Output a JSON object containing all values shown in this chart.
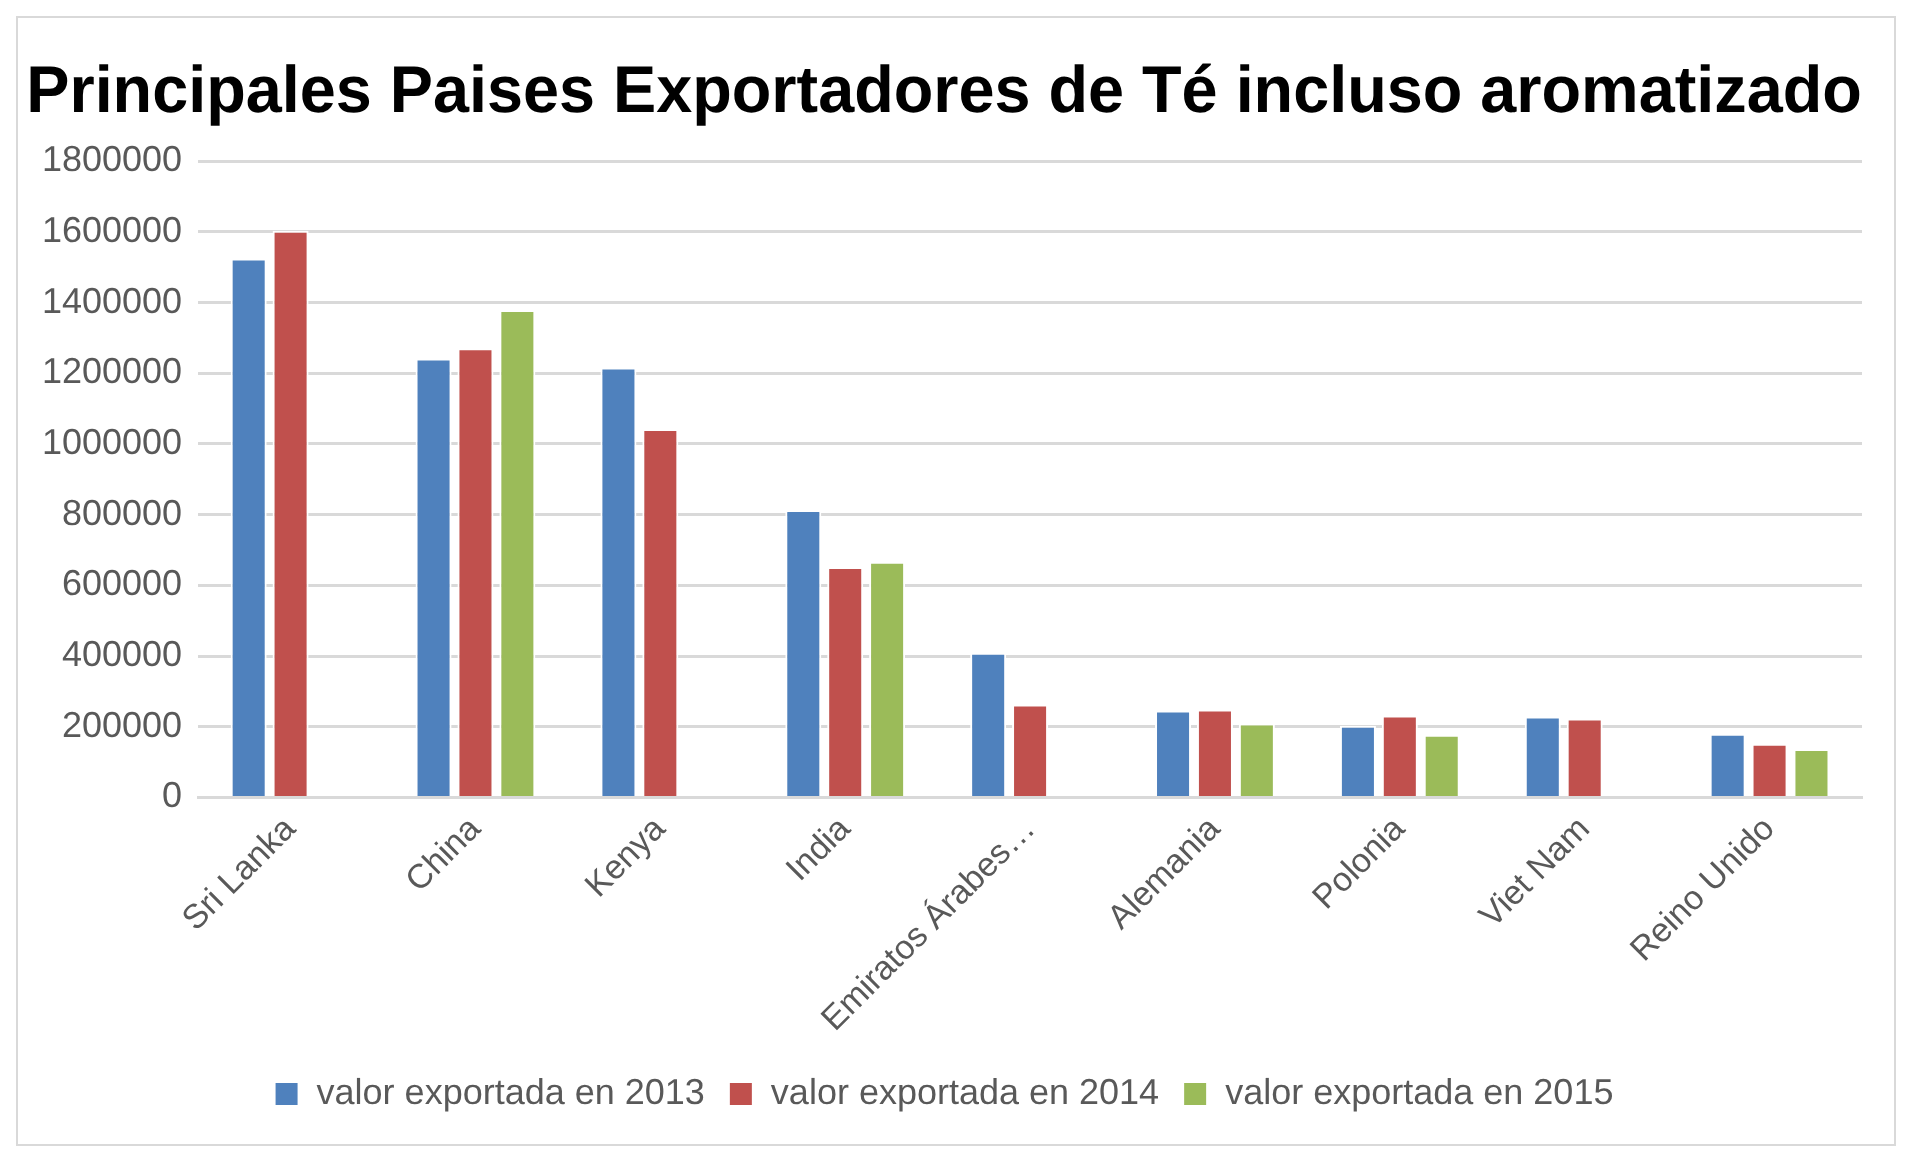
{
  "chart_data": {
    "type": "bar",
    "title": "Principales Paises Exportadores de Té incluso aromatizado",
    "categories": [
      "Sri Lanka",
      "China",
      "Kenya",
      "India",
      "Emiratos Árabes…",
      "Alemania",
      "Polonia",
      "Viet Nam",
      "Reino Unido"
    ],
    "series": [
      {
        "name": "valor exportada en 2013",
        "color": "#4f81bd",
        "values": [
          1525000,
          1242000,
          1216000,
          813000,
          409000,
          246000,
          203000,
          229000,
          180000
        ]
      },
      {
        "name": "valor exportada en 2014",
        "color": "#c0504d",
        "values": [
          1603000,
          1271000,
          1042000,
          652000,
          263000,
          249000,
          232000,
          223000,
          152000
        ]
      },
      {
        "name": "valor exportada en 2015",
        "color": "#9bbb59",
        "values": [
          null,
          1379000,
          null,
          667000,
          null,
          209000,
          177000,
          null,
          137000
        ]
      }
    ],
    "ylim": [
      0,
      1800000
    ],
    "yticks": [
      0,
      200000,
      400000,
      600000,
      800000,
      1000000,
      1200000,
      1400000,
      1600000,
      1800000
    ],
    "grid": "y",
    "legend": "bottom"
  }
}
